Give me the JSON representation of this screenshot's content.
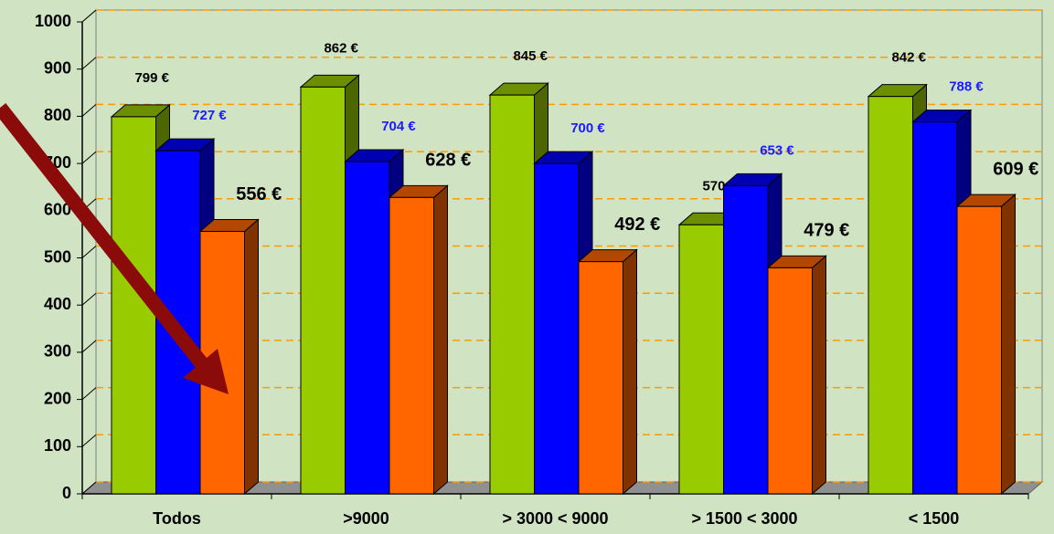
{
  "chart_data": {
    "type": "bar3d",
    "categories": [
      "Todos",
      ">9000",
      "> 3000 < 9000",
      "> 1500 < 3000",
      "< 1500"
    ],
    "series": [
      {
        "color": "#99cc00",
        "values": [
          799,
          862,
          845,
          570,
          842
        ],
        "value_labels": [
          "799 €",
          "862 €",
          "845 €",
          "570 €",
          "842 €"
        ]
      },
      {
        "color": "#0000ff",
        "values": [
          727,
          704,
          700,
          653,
          788
        ],
        "value_labels": [
          "727 €",
          "704 €",
          "700 €",
          "653 €",
          "788 €"
        ]
      },
      {
        "color": "#ff6600",
        "values": [
          556,
          628,
          492,
          479,
          609
        ],
        "value_labels": [
          "556 €",
          "628 €",
          "492 €",
          "479 €",
          "609 €"
        ]
      }
    ],
    "ylim": [
      0,
      1000
    ],
    "yticks": [
      0,
      100,
      200,
      300,
      400,
      500,
      600,
      700,
      800,
      900,
      1000
    ],
    "grid": true,
    "grid_color": "#ff9900"
  }
}
